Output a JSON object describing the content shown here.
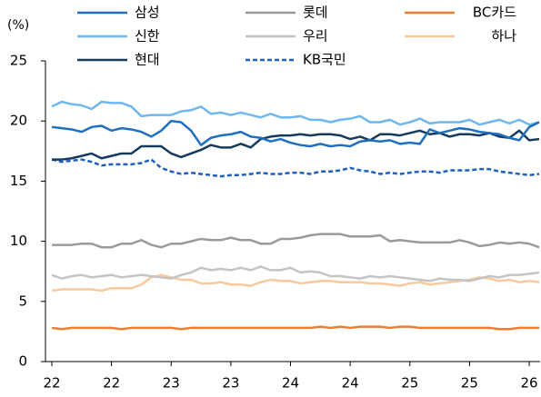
{
  "chart_data": {
    "type": "line",
    "ylabel": "(%)",
    "categories": [
      "22",
      null,
      null,
      null,
      null,
      null,
      "22",
      null,
      null,
      null,
      null,
      null,
      "23",
      null,
      null,
      null,
      null,
      null,
      "23",
      null,
      null,
      null,
      null,
      null,
      "24",
      null,
      null,
      null,
      null,
      null,
      "24",
      null,
      null,
      null,
      null,
      null,
      "25",
      null,
      null,
      null,
      null,
      null,
      "25",
      null,
      null,
      null,
      null,
      null,
      "26",
      null
    ],
    "ylim": [
      0,
      25
    ],
    "yticks": [
      0,
      5,
      10,
      15,
      20,
      25
    ],
    "series": [
      {
        "name": "삼성",
        "color": "#1f6fc0",
        "dash": false,
        "values": [
          19.5,
          19.4,
          19.3,
          19.1,
          19.5,
          19.6,
          19.2,
          19.4,
          19.3,
          19.1,
          18.7,
          19.2,
          20.0,
          19.9,
          19.2,
          18.0,
          18.6,
          18.8,
          18.9,
          19.1,
          18.7,
          18.6,
          18.3,
          18.5,
          18.2,
          18.0,
          17.9,
          18.1,
          17.9,
          18.0,
          17.9,
          18.3,
          18.4,
          18.3,
          18.4,
          18.1,
          18.2,
          18.1,
          19.3,
          19.0,
          19.2,
          19.4,
          19.3,
          19.1,
          19.0,
          18.9,
          18.6,
          18.4,
          19.5,
          19.9
        ]
      },
      {
        "name": "신한",
        "color": "#6fb7ef",
        "dash": false,
        "values": [
          21.2,
          21.6,
          21.4,
          21.3,
          21.0,
          21.6,
          21.5,
          21.5,
          21.2,
          20.4,
          20.5,
          20.5,
          20.5,
          20.8,
          20.9,
          21.2,
          20.6,
          20.7,
          20.5,
          20.7,
          20.5,
          20.3,
          20.6,
          20.3,
          20.3,
          20.4,
          20.1,
          20.1,
          19.9,
          20.1,
          20.2,
          20.4,
          19.9,
          19.9,
          20.1,
          19.7,
          19.9,
          20.2,
          19.8,
          19.9,
          19.9,
          19.9,
          20.1,
          19.7,
          19.9,
          20.1,
          19.8,
          20.1,
          19.7,
          19.9
        ]
      },
      {
        "name": "현대",
        "color": "#143a5e",
        "dash": false,
        "values": [
          16.8,
          16.8,
          16.9,
          17.1,
          17.3,
          16.9,
          17.1,
          17.3,
          17.3,
          17.9,
          17.9,
          17.9,
          17.3,
          17.0,
          17.3,
          17.6,
          18.0,
          17.8,
          17.8,
          18.1,
          17.8,
          18.5,
          18.7,
          18.8,
          18.8,
          18.9,
          18.8,
          18.9,
          18.9,
          18.8,
          18.5,
          18.7,
          18.4,
          18.9,
          18.9,
          18.8,
          19.0,
          19.2,
          18.9,
          19.0,
          18.7,
          18.9,
          18.9,
          18.8,
          19.0,
          18.7,
          18.6,
          19.2,
          18.4,
          18.5
        ]
      },
      {
        "name": "롯데",
        "color": "#9a9a9a",
        "dash": false,
        "values": [
          9.7,
          9.7,
          9.7,
          9.8,
          9.8,
          9.5,
          9.5,
          9.8,
          9.8,
          10.1,
          9.7,
          9.5,
          9.8,
          9.8,
          10.0,
          10.2,
          10.1,
          10.1,
          10.3,
          10.1,
          10.1,
          9.8,
          9.8,
          10.2,
          10.2,
          10.3,
          10.5,
          10.6,
          10.6,
          10.6,
          10.4,
          10.4,
          10.4,
          10.5,
          10.0,
          10.1,
          10.0,
          9.9,
          9.9,
          9.9,
          9.9,
          10.1,
          9.9,
          9.6,
          9.7,
          9.9,
          9.8,
          9.9,
          9.8,
          9.5
        ]
      },
      {
        "name": "우리",
        "color": "#c4c4c4",
        "dash": false,
        "values": [
          7.2,
          6.9,
          7.1,
          7.2,
          7.0,
          7.1,
          7.2,
          7.0,
          7.1,
          7.2,
          7.1,
          7.0,
          6.9,
          7.2,
          7.4,
          7.8,
          7.6,
          7.7,
          7.6,
          7.8,
          7.6,
          7.9,
          7.6,
          7.6,
          7.8,
          7.4,
          7.5,
          7.4,
          7.1,
          7.1,
          7.0,
          6.9,
          7.1,
          7.0,
          7.1,
          7.0,
          6.9,
          6.8,
          6.7,
          6.9,
          6.8,
          6.8,
          6.7,
          6.9,
          7.1,
          7.0,
          7.2,
          7.2,
          7.3,
          7.4
        ]
      },
      {
        "name": "KB국민",
        "color": "#1f5fbf",
        "dash": true,
        "values": [
          16.8,
          16.6,
          16.7,
          16.8,
          16.6,
          16.3,
          16.4,
          16.4,
          16.4,
          16.5,
          16.8,
          16.1,
          15.8,
          15.6,
          15.7,
          15.6,
          15.5,
          15.4,
          15.5,
          15.5,
          15.6,
          15.7,
          15.6,
          15.6,
          15.7,
          15.7,
          15.6,
          15.8,
          15.8,
          15.9,
          16.1,
          15.9,
          15.8,
          15.6,
          15.7,
          15.6,
          15.7,
          15.8,
          15.8,
          15.7,
          15.9,
          15.9,
          15.9,
          16.0,
          16.0,
          15.8,
          15.7,
          15.6,
          15.5,
          15.6
        ]
      },
      {
        "name": "BC카드",
        "color": "#ed7d31",
        "dash": false,
        "values": [
          2.8,
          2.7,
          2.8,
          2.8,
          2.8,
          2.8,
          2.8,
          2.7,
          2.8,
          2.8,
          2.8,
          2.8,
          2.8,
          2.7,
          2.8,
          2.8,
          2.8,
          2.8,
          2.8,
          2.8,
          2.8,
          2.8,
          2.8,
          2.8,
          2.8,
          2.8,
          2.8,
          2.9,
          2.8,
          2.9,
          2.8,
          2.9,
          2.9,
          2.9,
          2.8,
          2.9,
          2.9,
          2.8,
          2.8,
          2.8,
          2.8,
          2.8,
          2.8,
          2.8,
          2.8,
          2.7,
          2.7,
          2.8,
          2.8,
          2.8
        ]
      },
      {
        "name": "하나",
        "color": "#f8c99a",
        "dash": false,
        "values": [
          5.9,
          6.0,
          6.0,
          6.0,
          6.0,
          5.9,
          6.1,
          6.1,
          6.1,
          6.4,
          7.0,
          7.2,
          7.0,
          6.8,
          6.8,
          6.5,
          6.5,
          6.6,
          6.4,
          6.4,
          6.3,
          6.6,
          6.8,
          6.7,
          6.7,
          6.5,
          6.6,
          6.7,
          6.7,
          6.6,
          6.6,
          6.6,
          6.5,
          6.5,
          6.4,
          6.3,
          6.5,
          6.6,
          6.4,
          6.5,
          6.6,
          6.7,
          6.8,
          7.0,
          6.9,
          6.7,
          6.8,
          6.6,
          6.7,
          6.6
        ]
      }
    ]
  }
}
